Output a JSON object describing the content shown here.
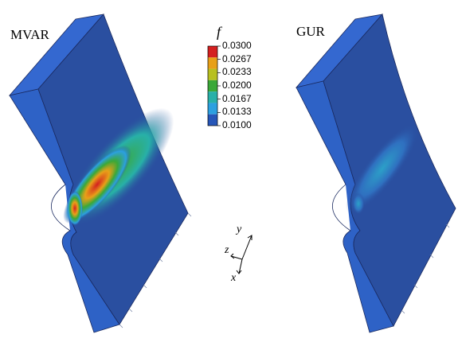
{
  "panels": {
    "left_title": "MVAR",
    "right_title": "GUR"
  },
  "colorbar": {
    "variable": "f",
    "ticks": [
      "0.0300",
      "0.0267",
      "0.0233",
      "0.0200",
      "0.0167",
      "0.0133",
      "0.0100"
    ],
    "colors": [
      "#d42020",
      "#e8a018",
      "#b8c020",
      "#3aa838",
      "#28b0a8",
      "#2ca0e0",
      "#2656b8"
    ]
  },
  "axes_triad": {
    "x": "x",
    "y": "y",
    "z": "z"
  },
  "colors": {
    "specimen_base": "#2a4fa0",
    "specimen_side": "#2e62c6",
    "specimen_top": "#3468d0"
  }
}
